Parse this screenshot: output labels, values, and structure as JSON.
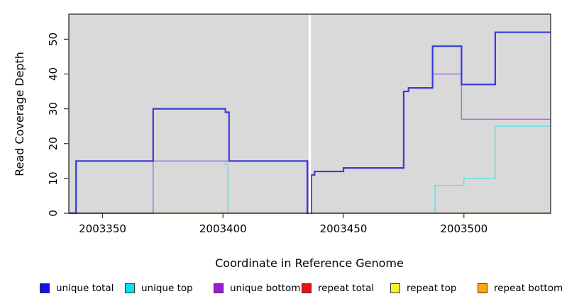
{
  "chart_data": {
    "type": "line",
    "subtype": "step-coverage",
    "title": "",
    "xlabel": "Coordinate in Reference Genome",
    "ylabel": "Read Coverage Depth",
    "xlim": [
      2003336,
      2003536
    ],
    "ylim": [
      0,
      57.2
    ],
    "x_ticks": [
      2003350,
      2003400,
      2003450,
      2003500
    ],
    "y_ticks": [
      0,
      10,
      20,
      30,
      40,
      50
    ],
    "plot_background": "#d9d9d9",
    "frame_color": "#1a1a1a",
    "grid": "off",
    "legend_position": "bottom",
    "gap": {
      "from": 2003435.5,
      "to": 2003436.5,
      "color": "#ffffff"
    },
    "baseline_overlay": {
      "name": "pale-green baseline",
      "color": "#7fd49b",
      "from": 2003402.3,
      "to": 2003488,
      "value": 0,
      "z": 6
    },
    "series": [
      {
        "name": "unique total",
        "line_color": "#3a3ada",
        "marker_color": "#1414e6",
        "width": 2.2,
        "z": 7,
        "segments": [
          {
            "end": 2003435.5,
            "points": [
              [
                2003336,
                0
              ],
              [
                2003339,
                15
              ],
              [
                2003371,
                30
              ],
              [
                2003401,
                29
              ],
              [
                2003402.5,
                15
              ],
              [
                2003435,
                0
              ]
            ]
          },
          {
            "end": 2003536,
            "points": [
              [
                2003436.5,
                0
              ],
              [
                2003436.7,
                11
              ],
              [
                2003438,
                12
              ],
              [
                2003450,
                13
              ],
              [
                2003475,
                35
              ],
              [
                2003477,
                36
              ],
              [
                2003487,
                48
              ],
              [
                2003499,
                37
              ],
              [
                2003513,
                52
              ]
            ]
          }
        ]
      },
      {
        "name": "unique top",
        "line_color": "#5fdfe8",
        "marker_color": "#00e5ee",
        "width": 1.4,
        "z": 3,
        "segments": [
          {
            "end": 2003435.5,
            "points": [
              [
                2003336,
                0
              ],
              [
                2003339,
                15
              ],
              [
                2003401,
                14
              ],
              [
                2003402,
                0
              ]
            ]
          },
          {
            "end": 2003536,
            "points": [
              [
                2003436.5,
                0
              ],
              [
                2003488,
                8
              ],
              [
                2003500,
                10
              ],
              [
                2003513,
                25
              ]
            ]
          }
        ]
      },
      {
        "name": "unique bottom",
        "line_color": "#a56add",
        "marker_color": "#9a1fd4",
        "width": 1.4,
        "z": 4,
        "segments": [
          {
            "end": 2003435.5,
            "points": [
              [
                2003336,
                0
              ],
              [
                2003371,
                15
              ],
              [
                2003435.4,
                0
              ]
            ]
          },
          {
            "end": 2003536,
            "points": [
              [
                2003436.5,
                0
              ],
              [
                2003436.8,
                11
              ],
              [
                2003438,
                12
              ],
              [
                2003450,
                13
              ],
              [
                2003475,
                35
              ],
              [
                2003477,
                36
              ],
              [
                2003487,
                40
              ],
              [
                2003499,
                27
              ]
            ]
          }
        ]
      },
      {
        "name": "repeat total",
        "line_color": "#cc3b50",
        "marker_color": "#e61414",
        "width": 1.4,
        "z": 2,
        "segments": [
          {
            "end": 2003371,
            "points": [
              [
                2003339,
                0
              ]
            ]
          }
        ]
      },
      {
        "name": "repeat top",
        "line_color": "#f2ee30",
        "marker_color": "#f5f233",
        "width": 1.2,
        "z": 1,
        "segments": [
          {
            "end": 2003536,
            "points": [
              [
                2003336,
                0
              ]
            ]
          }
        ]
      },
      {
        "name": "repeat bottom",
        "line_color": "#ff9100",
        "marker_color": "#ffa60f",
        "width": 1.6,
        "z": 5,
        "segments": [
          {
            "end": 2003402.3,
            "points": [
              [
                2003371,
                0
              ]
            ]
          },
          {
            "end": 2003536,
            "points": [
              [
                2003488,
                0
              ]
            ]
          }
        ]
      }
    ]
  },
  "legend": {
    "items": [
      {
        "label": "unique total",
        "color": "#1414e6"
      },
      {
        "label": "unique top",
        "color": "#00e5ee"
      },
      {
        "label": "unique bottom",
        "color": "#9a1fd4"
      },
      {
        "label": "repeat total",
        "color": "#e61414"
      },
      {
        "label": "repeat top",
        "color": "#f5f233"
      },
      {
        "label": "repeat bottom",
        "color": "#ffa60f"
      }
    ]
  }
}
